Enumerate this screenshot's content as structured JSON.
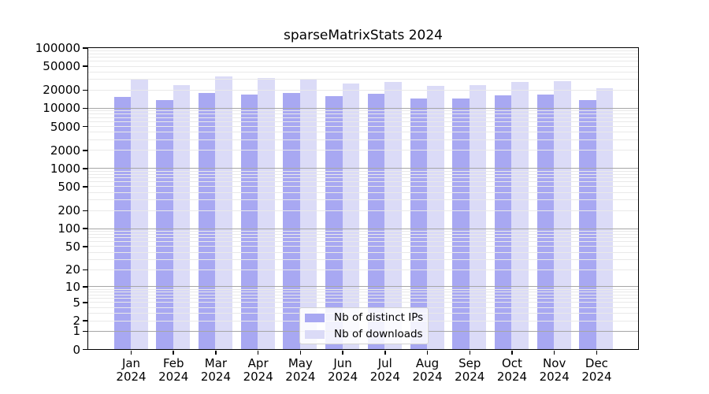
{
  "chart_data": {
    "type": "bar",
    "title": "sparseMatrixStats 2024",
    "categories": [
      "Jan",
      "Feb",
      "Mar",
      "Apr",
      "May",
      "Jun",
      "Jul",
      "Aug",
      "Sep",
      "Oct",
      "Nov",
      "Dec"
    ],
    "category_year": "2024",
    "series": [
      {
        "name": "Nb of distinct IPs",
        "color": "#a8a8f2",
        "values": [
          15400,
          13500,
          17500,
          16800,
          17500,
          15700,
          17000,
          14300,
          14300,
          16100,
          16500,
          13500
        ]
      },
      {
        "name": "Nb of downloads",
        "color": "#dbdbf7",
        "values": [
          30800,
          24100,
          33500,
          31300,
          30400,
          25800,
          27400,
          22900,
          23600,
          27200,
          28000,
          21100
        ]
      }
    ],
    "yscale": "log10(1+x)",
    "ylim": [
      0,
      100000
    ],
    "yticks": [
      0,
      1,
      2,
      5,
      10,
      20,
      50,
      100,
      200,
      500,
      1000,
      2000,
      5000,
      10000,
      20000,
      50000,
      100000
    ],
    "grid": {
      "orientation": "horizontal",
      "major_at": "powers of 10",
      "minor_at": "2-9 per decade",
      "major_color": "#a6a6a6",
      "minor_color": "#e9e9e9"
    },
    "legend": {
      "position": "inside-bottom-center"
    }
  }
}
